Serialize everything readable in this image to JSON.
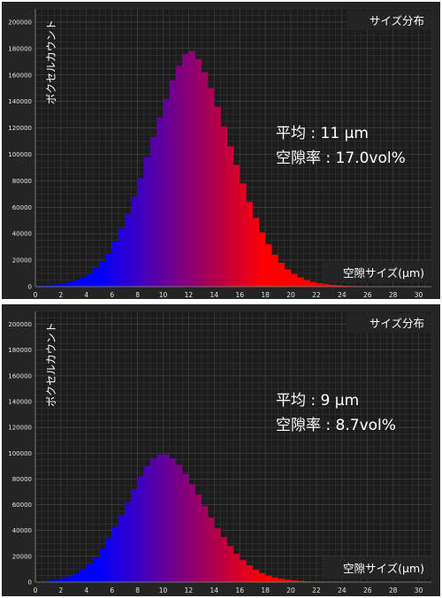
{
  "chart_data": [
    {
      "type": "bar",
      "title": "サイズ分布",
      "ylabel": "ボクセルカウント",
      "xlabel": "空隙サイズ(μm)",
      "annotations": [
        "平均 : 11 μm",
        "空隙率 : 17.0vol%"
      ],
      "xlim": [
        0,
        31
      ],
      "ylim": [
        0,
        210000
      ],
      "xticks": [
        0,
        2,
        4,
        6,
        8,
        10,
        12,
        14,
        16,
        18,
        20,
        22,
        24,
        26,
        28,
        30
      ],
      "yticks": [
        0,
        20000,
        40000,
        60000,
        80000,
        100000,
        120000,
        140000,
        160000,
        180000,
        200000
      ],
      "bin_width": 0.5,
      "x": [
        0.25,
        0.75,
        1.25,
        1.75,
        2.25,
        2.75,
        3.25,
        3.75,
        4.25,
        4.75,
        5.25,
        5.75,
        6.25,
        6.75,
        7.25,
        7.75,
        8.25,
        8.75,
        9.25,
        9.75,
        10.25,
        10.75,
        11.25,
        11.75,
        12.25,
        12.75,
        13.25,
        13.75,
        14.25,
        14.75,
        15.25,
        15.75,
        16.25,
        16.75,
        17.25,
        17.75,
        18.25,
        18.75,
        19.25,
        19.75,
        20.25,
        20.75,
        21.25,
        21.75,
        22.25,
        22.75,
        23.25,
        23.75,
        24.25,
        24.75,
        25.25,
        25.75
      ],
      "values": [
        500,
        800,
        1200,
        1800,
        2500,
        3500,
        5000,
        7000,
        10000,
        14000,
        19000,
        25000,
        34000,
        44000,
        55000,
        68000,
        82000,
        98000,
        113000,
        128000,
        142000,
        156000,
        167000,
        176000,
        178000,
        172000,
        162000,
        150000,
        136000,
        121000,
        106000,
        92000,
        78000,
        64000,
        52000,
        41000,
        32000,
        24000,
        18000,
        13000,
        9500,
        7000,
        5000,
        3600,
        2600,
        1900,
        1400,
        1000,
        700,
        500,
        350,
        200
      ],
      "gradient": [
        "#0000ff",
        "#ff0000"
      ],
      "grid": true
    },
    {
      "type": "bar",
      "title": "サイズ分布",
      "ylabel": "ボクセルカウント",
      "xlabel": "空隙サイズ(μm)",
      "annotations": [
        "平均 : 9 μm",
        "空隙率 : 8.7vol%"
      ],
      "xlim": [
        0,
        31
      ],
      "ylim": [
        0,
        210000
      ],
      "xticks": [
        0,
        2,
        4,
        6,
        8,
        10,
        12,
        14,
        16,
        18,
        20,
        22,
        24,
        26,
        28,
        30
      ],
      "yticks": [
        0,
        20000,
        40000,
        60000,
        80000,
        100000,
        120000,
        140000,
        160000,
        180000,
        200000
      ],
      "bin_width": 0.5,
      "x": [
        0.25,
        0.75,
        1.25,
        1.75,
        2.25,
        2.75,
        3.25,
        3.75,
        4.25,
        4.75,
        5.25,
        5.75,
        6.25,
        6.75,
        7.25,
        7.75,
        8.25,
        8.75,
        9.25,
        9.75,
        10.25,
        10.75,
        11.25,
        11.75,
        12.25,
        12.75,
        13.25,
        13.75,
        14.25,
        14.75,
        15.25,
        15.75,
        16.25,
        16.75,
        17.25,
        17.75,
        18.25,
        18.75,
        19.25,
        19.75,
        20.25,
        20.75,
        21.25,
        21.75,
        22.25,
        22.75,
        23.25,
        23.75
      ],
      "values": [
        500,
        800,
        1300,
        2000,
        3000,
        4500,
        7000,
        10000,
        14000,
        19000,
        26000,
        34000,
        43000,
        52000,
        62000,
        72000,
        82000,
        90000,
        96000,
        99000,
        99000,
        96000,
        91000,
        84000,
        76000,
        68000,
        59000,
        50000,
        42000,
        35000,
        28000,
        22000,
        17000,
        13000,
        9500,
        7000,
        5000,
        3600,
        2600,
        1800,
        1300,
        900,
        600,
        400,
        300,
        200,
        150,
        100
      ],
      "gradient": [
        "#0000ff",
        "#ff0000"
      ],
      "grid": true
    }
  ]
}
